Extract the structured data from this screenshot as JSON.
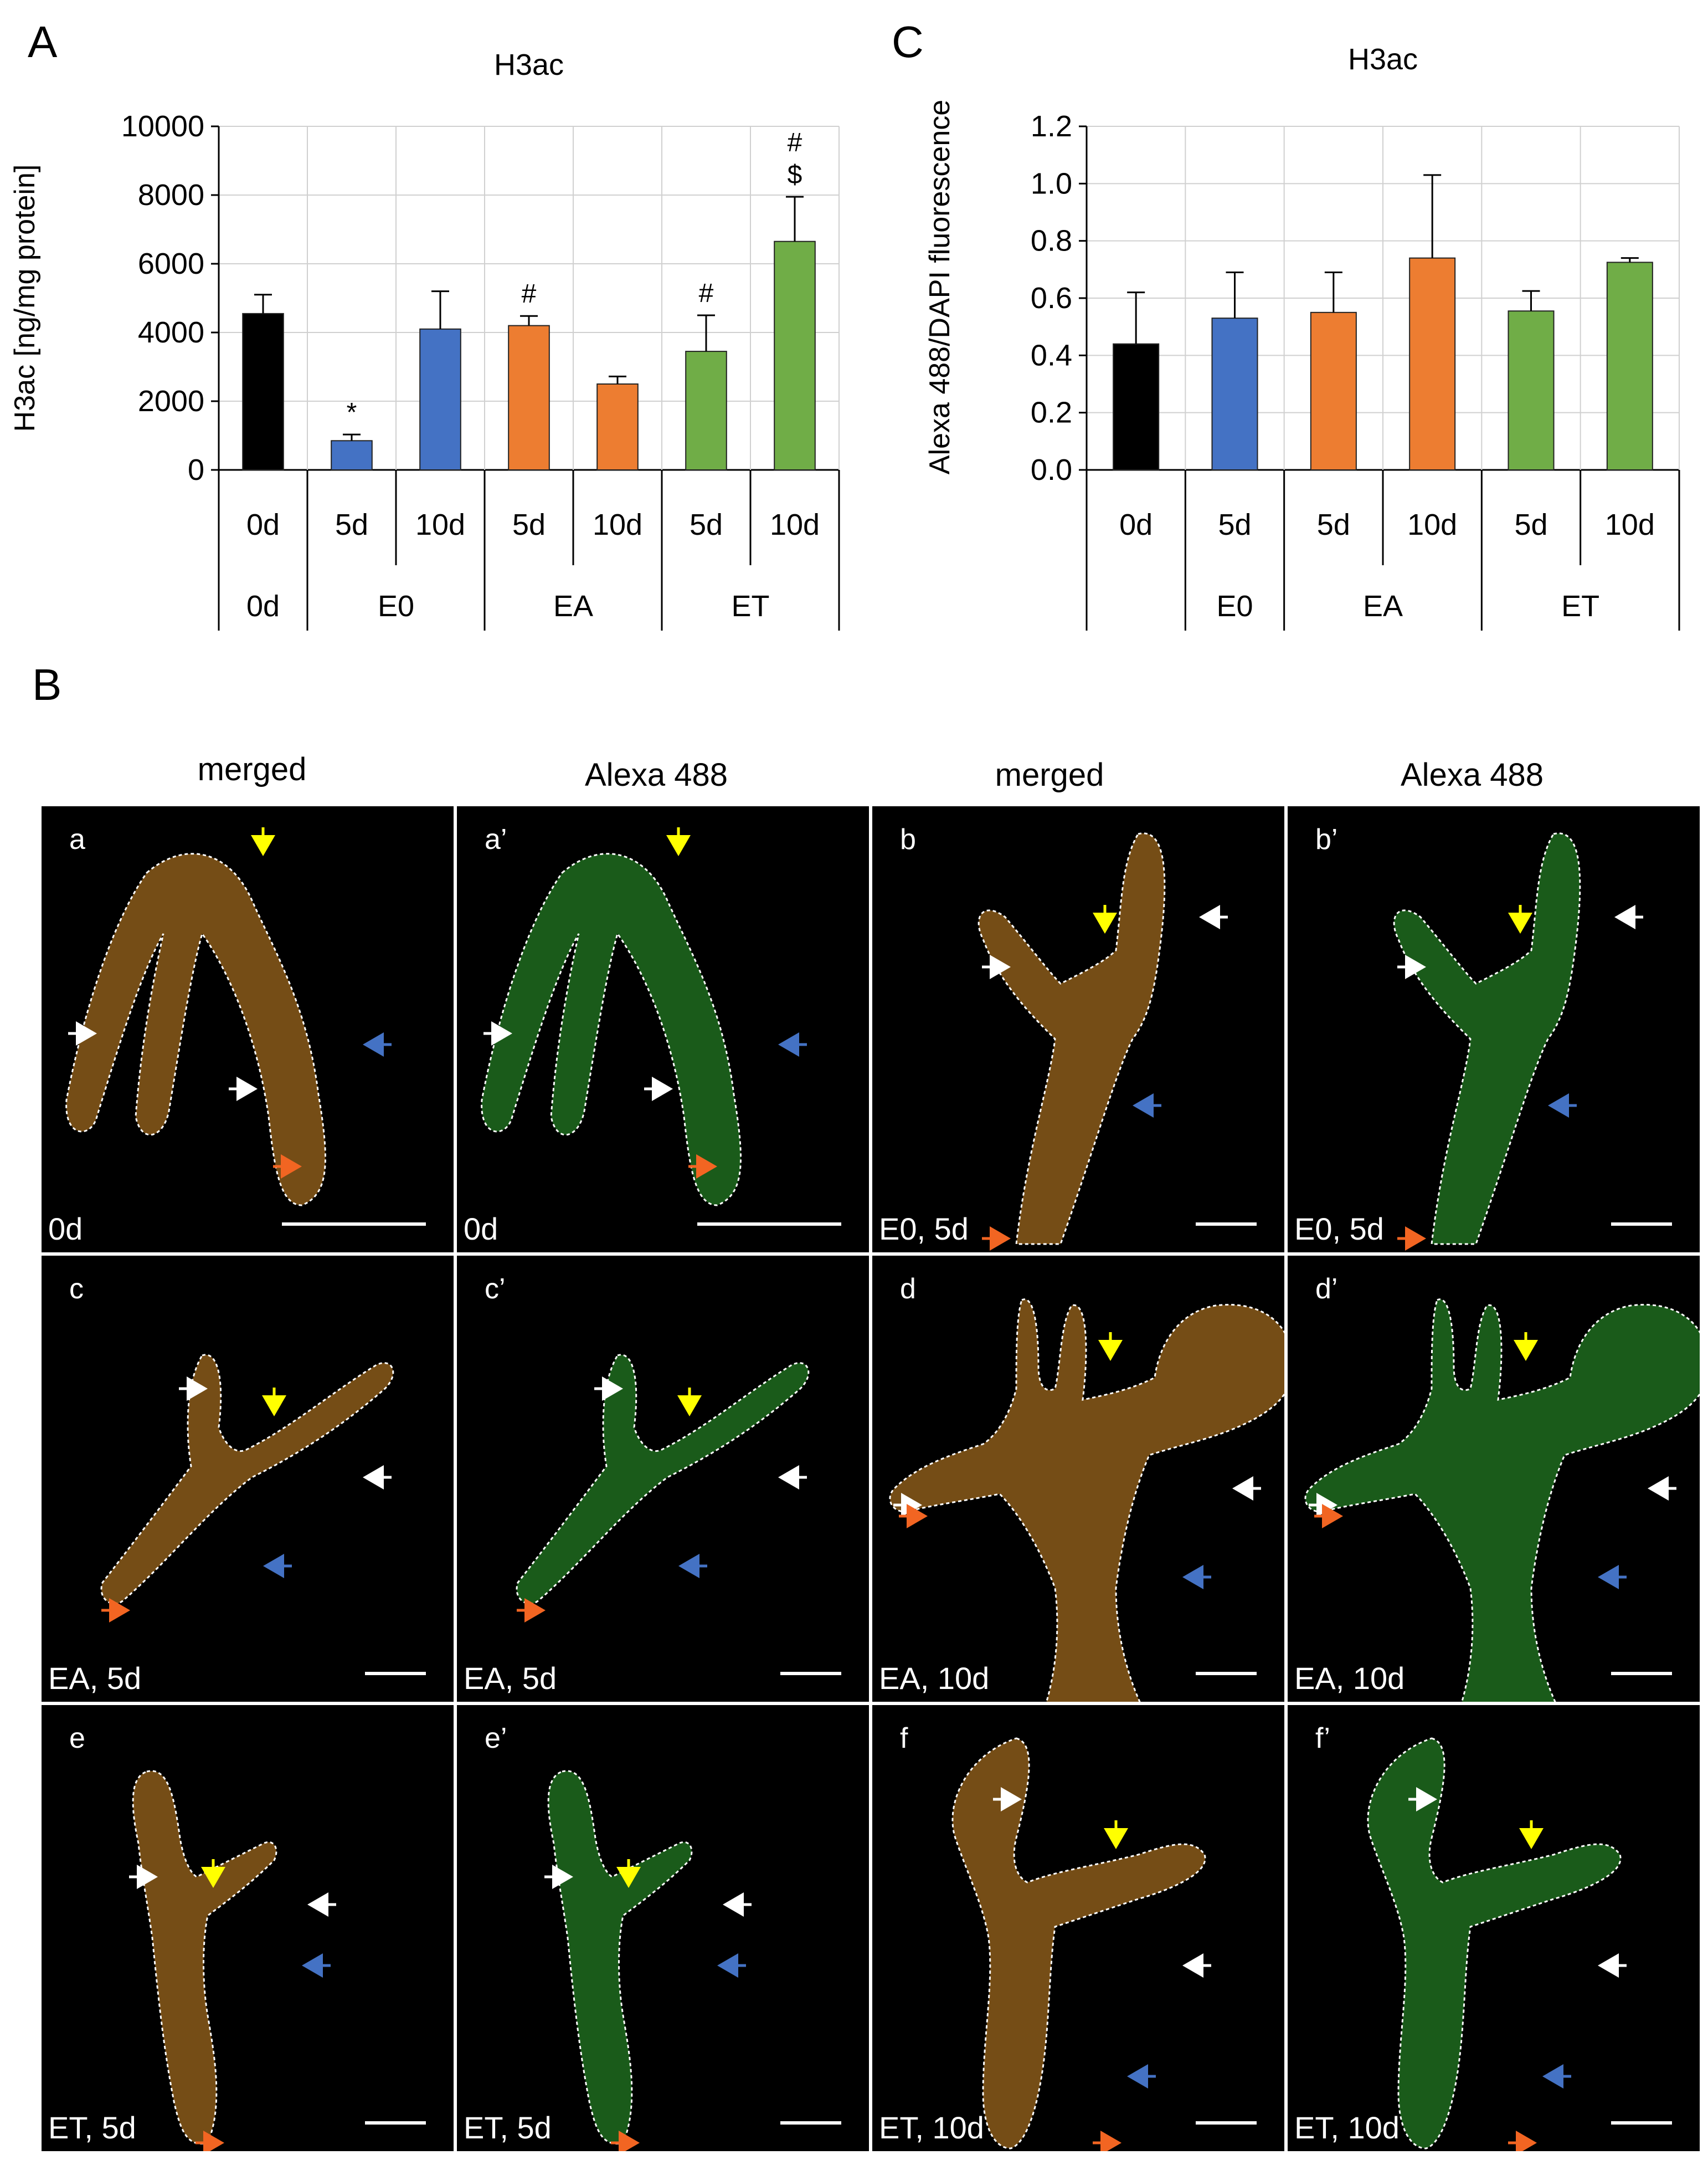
{
  "panel_letters": {
    "a": "A",
    "b": "B",
    "c": "C"
  },
  "chart_data": [
    {
      "type": "bar",
      "panel": "A",
      "title": "H3ac",
      "ylabel": "H3ac [ng/mg protein]",
      "ylim": [
        0,
        10000
      ],
      "yticks": [
        "0",
        "2000",
        "4000",
        "6000",
        "8000",
        "10000"
      ],
      "grid": true,
      "categories": [
        "0d",
        "5d",
        "10d",
        "5d",
        "10d",
        "5d",
        "10d"
      ],
      "groups": [
        {
          "label": "0d",
          "bars": [
            0
          ]
        },
        {
          "label": "E0",
          "bars": [
            1,
            2
          ]
        },
        {
          "label": "EA",
          "bars": [
            3,
            4
          ]
        },
        {
          "label": "ET",
          "bars": [
            5,
            6
          ]
        }
      ],
      "values": [
        4550,
        850,
        4100,
        4200,
        2500,
        3450,
        6650
      ],
      "errors": [
        550,
        180,
        1100,
        280,
        220,
        1050,
        1300
      ],
      "colors": [
        "#000000",
        "#4472C4",
        "#4472C4",
        "#ED7D31",
        "#ED7D31",
        "#70AD47",
        "#70AD47"
      ],
      "annotations": [
        "",
        "*",
        "",
        "#",
        "",
        "#",
        "#\n$"
      ]
    },
    {
      "type": "bar",
      "panel": "C",
      "title": "H3ac",
      "ylabel": "Alexa 488/DAPI fluorescence",
      "ylim": [
        0,
        1.2
      ],
      "yticks": [
        "0.0",
        "0.2",
        "0.4",
        "0.6",
        "0.8",
        "1.0",
        "1.2"
      ],
      "grid": true,
      "categories": [
        "0d",
        "5d",
        "5d",
        "10d",
        "5d",
        "10d"
      ],
      "groups": [
        {
          "label": "",
          "bars": [
            0
          ]
        },
        {
          "label": "E0",
          "bars": [
            1
          ]
        },
        {
          "label": "EA",
          "bars": [
            2,
            3
          ]
        },
        {
          "label": "ET",
          "bars": [
            4,
            5
          ]
        }
      ],
      "values": [
        0.44,
        0.53,
        0.55,
        0.74,
        0.555,
        0.725
      ],
      "errors": [
        0.18,
        0.16,
        0.14,
        0.29,
        0.07,
        0.015
      ],
      "colors": [
        "#000000",
        "#4472C4",
        "#ED7D31",
        "#ED7D31",
        "#70AD47",
        "#70AD47"
      ],
      "annotations": [
        "",
        "",
        "",
        "",
        "",
        ""
      ]
    }
  ],
  "micrographs": {
    "column_headers": [
      "merged",
      "Alexa 488",
      "merged",
      "Alexa 488"
    ],
    "panels": [
      {
        "label": "a",
        "condition": "0d",
        "kind": "merged"
      },
      {
        "label": "a’",
        "condition": "0d",
        "kind": "green"
      },
      {
        "label": "b",
        "condition": "E0, 5d",
        "kind": "merged"
      },
      {
        "label": "b’",
        "condition": "E0, 5d",
        "kind": "green"
      },
      {
        "label": "c",
        "condition": "EA, 5d",
        "kind": "merged"
      },
      {
        "label": "c’",
        "condition": "EA, 5d",
        "kind": "green"
      },
      {
        "label": "d",
        "condition": "EA, 10d",
        "kind": "merged"
      },
      {
        "label": "d’",
        "condition": "EA, 10d",
        "kind": "green"
      },
      {
        "label": "e",
        "condition": "ET, 5d",
        "kind": "merged"
      },
      {
        "label": "e’",
        "condition": "ET, 5d",
        "kind": "green"
      },
      {
        "label": "f",
        "condition": "ET, 10d",
        "kind": "merged"
      },
      {
        "label": "f’",
        "condition": "ET, 10d",
        "kind": "green"
      }
    ],
    "arrow_colors": {
      "white": "#ffffff",
      "yellow": "#ffff00",
      "blue": "#4472C4",
      "orange": "#F26522"
    },
    "merged_tint": "#8a5a1a",
    "green_tint": "#1f6b1f"
  }
}
